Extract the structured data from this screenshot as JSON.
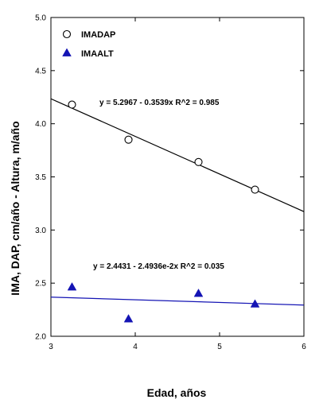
{
  "chart_data": {
    "type": "scatter",
    "xlabel": "Edad, años",
    "ylabel": "IMA,  DAP, cm/año - Altura, m/año",
    "xlim": [
      3,
      6
    ],
    "ylim": [
      2.0,
      5.0
    ],
    "x_ticks": [
      "3",
      "4",
      "5",
      "6"
    ],
    "y_ticks": [
      "2.0",
      "2.5",
      "3.0",
      "3.5",
      "4.0",
      "4.5",
      "5.0"
    ],
    "x_tick_values": [
      3,
      4,
      5,
      6
    ],
    "y_tick_values": [
      2.0,
      2.5,
      3.0,
      3.5,
      4.0,
      4.5,
      5.0
    ],
    "legend_position": "top-left",
    "grid": false,
    "series": [
      {
        "name": "IMADAP",
        "marker": "open-circle",
        "color": "#000000",
        "points": [
          {
            "x": 3.25,
            "y": 4.18
          },
          {
            "x": 3.92,
            "y": 3.85
          },
          {
            "x": 4.75,
            "y": 3.64
          },
          {
            "x": 5.42,
            "y": 3.38
          }
        ],
        "trendline": {
          "equation": "y = 5.2967 - 0.3539x   R^2 = 0.985",
          "intercept": 5.2967,
          "slope": -0.3539,
          "color": "#000000"
        }
      },
      {
        "name": "IMAALT",
        "marker": "filled-triangle",
        "color": "#1414b4",
        "points": [
          {
            "x": 3.25,
            "y": 2.46
          },
          {
            "x": 3.92,
            "y": 2.16
          },
          {
            "x": 4.75,
            "y": 2.4
          },
          {
            "x": 5.42,
            "y": 2.3
          }
        ],
        "trendline": {
          "equation": "y = 2.4431 - 2.4936e-2x   R^2 = 0.035",
          "intercept": 2.4431,
          "slope": -0.024936,
          "color": "#1414b4"
        }
      }
    ]
  }
}
